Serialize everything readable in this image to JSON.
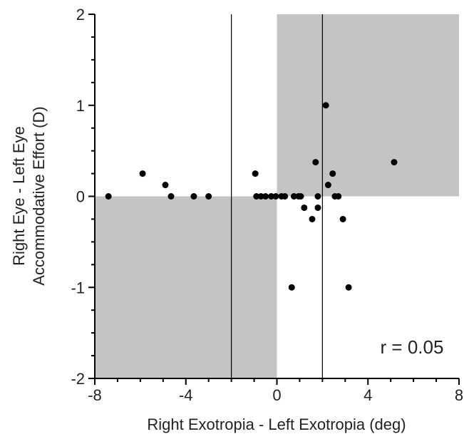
{
  "chart_data": {
    "type": "scatter",
    "x_label": "Right Exotropia - Left Exotropia (deg)",
    "y_label": [
      "Right Eye - Left Eye",
      "Accommodative Effort (D)"
    ],
    "annotations": [
      "*",
      "r = 0.05"
    ],
    "xlim": [
      -8,
      8
    ],
    "xticks": [
      -8,
      -4,
      0,
      4,
      8
    ],
    "ylim": [
      -2,
      2
    ],
    "yticks": [
      -2,
      -1,
      0,
      1,
      2
    ],
    "color": "#000000",
    "shaded_regions": [
      {
        "x": [
          0,
          8
        ],
        "y": [
          0,
          2
        ]
      },
      {
        "x": [
          -8,
          0
        ],
        "y": [
          -2,
          0
        ]
      }
    ],
    "shade_color": "#c4c4c4",
    "vlines": [
      -2,
      2
    ],
    "x": [
      -7.4,
      -5.9,
      -4.9,
      -4.65,
      -3.65,
      -3.0,
      -0.95,
      -0.9,
      -0.7,
      -0.5,
      -0.25,
      -0.05,
      0.2,
      0.35,
      0.65,
      0.75,
      0.95,
      1.05,
      1.2,
      1.55,
      1.7,
      1.8,
      1.8,
      2.15,
      2.25,
      2.45,
      2.55,
      2.7,
      2.9,
      3.15,
      5.15
    ],
    "values": [
      0,
      0.25,
      0.125,
      0,
      0,
      0,
      0.25,
      0,
      0,
      0,
      0,
      0,
      0,
      0,
      -1,
      0,
      0,
      0,
      -0.125,
      -0.25,
      0.375,
      0,
      -0.125,
      1,
      0.125,
      0.25,
      0,
      0,
      -0.25,
      -1,
      0.375
    ]
  }
}
